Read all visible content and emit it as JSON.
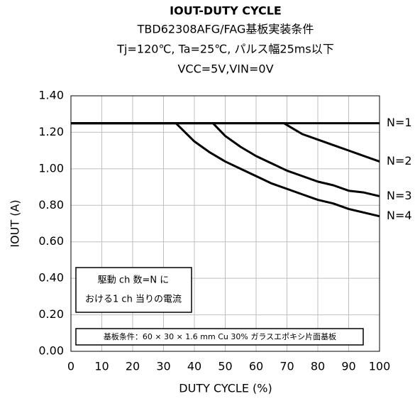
{
  "chart_data": {
    "type": "line",
    "title": "IOUT-DUTY CYCLE",
    "subtitle": [
      "TBD62308AFG/FAG基板実装条件",
      "Tj=120℃, Ta=25℃, パルス幅25ms以下",
      "VCC=5V,VIN=0V"
    ],
    "xlabel": "DUTY CYCLE (%)",
    "ylabel": "IOUT (A)",
    "xlim": [
      0,
      100
    ],
    "xticks": [
      0,
      10,
      20,
      30,
      40,
      50,
      60,
      70,
      80,
      90,
      100
    ],
    "ylim": [
      0,
      1.4
    ],
    "yticks": [
      {
        "value": 0,
        "label": "0.00"
      },
      {
        "value": 0.2,
        "label": "0.20"
      },
      {
        "value": 0.4,
        "label": "0.40"
      },
      {
        "value": 0.6,
        "label": "0.60"
      },
      {
        "value": 0.8,
        "label": "0.80"
      },
      {
        "value": 1.0,
        "label": "1.00"
      },
      {
        "value": 1.2,
        "label": "1.20"
      },
      {
        "value": 1.4,
        "label": "1.40"
      }
    ],
    "grid": true,
    "series": [
      {
        "name": "N=1",
        "color": "#000000",
        "x": [
          0,
          100
        ],
        "values": [
          1.25,
          1.25
        ]
      },
      {
        "name": "N=2",
        "color": "#000000",
        "x": [
          0,
          69,
          72,
          75,
          80,
          85,
          90,
          95,
          100
        ],
        "values": [
          1.25,
          1.25,
          1.22,
          1.19,
          1.16,
          1.13,
          1.1,
          1.07,
          1.04
        ]
      },
      {
        "name": "N=3",
        "color": "#000000",
        "x": [
          0,
          46,
          50,
          55,
          60,
          65,
          70,
          75,
          80,
          85,
          90,
          95,
          100
        ],
        "values": [
          1.25,
          1.25,
          1.18,
          1.12,
          1.07,
          1.03,
          0.99,
          0.96,
          0.93,
          0.91,
          0.88,
          0.87,
          0.85
        ]
      },
      {
        "name": "N=4",
        "color": "#000000",
        "x": [
          0,
          34,
          37,
          40,
          45,
          50,
          55,
          60,
          65,
          70,
          75,
          80,
          85,
          90,
          95,
          100
        ],
        "values": [
          1.25,
          1.25,
          1.2,
          1.15,
          1.09,
          1.04,
          1.0,
          0.96,
          0.92,
          0.89,
          0.86,
          0.83,
          0.81,
          0.78,
          0.76,
          0.74
        ]
      }
    ],
    "annotations": [
      "駆動 ch 数=N に",
      "おける1 ch 当りの電流",
      "基板条件：60 × 30 × 1.6 mm Cu 30%  ガラスエポキシ片面基板"
    ]
  }
}
